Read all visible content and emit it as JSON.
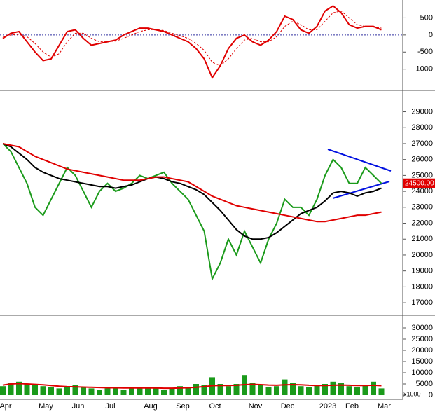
{
  "chart_data": [
    {
      "type": "line",
      "ylim": [
        -1580,
        980
      ],
      "yticks": [
        -1000,
        -500,
        0,
        500
      ],
      "series": [
        {
          "color": "#e00000",
          "style": "solid",
          "values": [
            -100,
            50,
            100,
            -200,
            -500,
            -750,
            -700,
            -300,
            100,
            150,
            -100,
            -300,
            -250,
            -200,
            -150,
            0,
            100,
            200,
            200,
            150,
            100,
            0,
            -100,
            -200,
            -400,
            -700,
            -1250,
            -900,
            -400,
            -100,
            0,
            -200,
            -300,
            -150,
            100,
            550,
            450,
            150,
            50,
            250,
            700,
            850,
            650,
            300,
            200,
            250,
            250,
            150
          ]
        },
        {
          "color": "#e00000",
          "style": "dashed",
          "values": [
            -50,
            0,
            20,
            -50,
            -250,
            -500,
            -650,
            -550,
            -200,
            50,
            50,
            -100,
            -200,
            -200,
            -180,
            -100,
            0,
            100,
            150,
            160,
            130,
            50,
            -20,
            -100,
            -250,
            -450,
            -800,
            -900,
            -700,
            -400,
            -150,
            -100,
            -200,
            -200,
            -50,
            250,
            400,
            300,
            150,
            150,
            400,
            650,
            700,
            500,
            300,
            250,
            230,
            200
          ]
        }
      ]
    },
    {
      "type": "line",
      "ylim": [
        16300,
        30300
      ],
      "yticks": [
        17000,
        18000,
        19000,
        20000,
        21000,
        22000,
        23000,
        24000,
        25000,
        26000,
        27000,
        28000,
        29000
      ],
      "last_price_label": "24500.00",
      "series": [
        {
          "color": "#1a9a1a",
          "style": "solid",
          "values": [
            27000,
            26500,
            25500,
            24500,
            23000,
            22500,
            23500,
            24500,
            25500,
            25000,
            24000,
            23000,
            24000,
            24500,
            24000,
            24200,
            24500,
            25000,
            24800,
            25000,
            25200,
            24500,
            24000,
            23500,
            22500,
            21500,
            18500,
            19500,
            21000,
            20000,
            21500,
            20500,
            19500,
            21000,
            22000,
            23500,
            23000,
            23000,
            22500,
            23500,
            25000,
            26000,
            25500,
            24500,
            24500,
            25500,
            25000,
            24500
          ]
        },
        {
          "color": "#000000",
          "style": "solid",
          "values": [
            27000,
            26800,
            26400,
            26000,
            25500,
            25200,
            25000,
            24800,
            24700,
            24600,
            24500,
            24400,
            24300,
            24300,
            24200,
            24300,
            24400,
            24600,
            24800,
            24900,
            24800,
            24600,
            24500,
            24300,
            24100,
            23800,
            23300,
            22800,
            22200,
            21600,
            21200,
            21000,
            21000,
            21100,
            21400,
            21800,
            22200,
            22600,
            22800,
            23000,
            23400,
            23900,
            24000,
            23900,
            23700,
            23900,
            24000,
            24200
          ]
        },
        {
          "color": "#e00000",
          "style": "solid",
          "values": [
            27000,
            26900,
            26800,
            26500,
            26200,
            26000,
            25800,
            25600,
            25400,
            25300,
            25200,
            25100,
            25000,
            24900,
            24800,
            24700,
            24700,
            24700,
            24800,
            24900,
            24900,
            24800,
            24700,
            24600,
            24300,
            24000,
            23700,
            23500,
            23300,
            23100,
            23000,
            22900,
            22800,
            22700,
            22600,
            22500,
            22400,
            22300,
            22200,
            22100,
            22100,
            22200,
            22300,
            22400,
            22500,
            22500,
            22600,
            22700
          ]
        }
      ]
    },
    {
      "type": "bar",
      "ylim": [
        -1875,
        35000
      ],
      "yticks": [
        0,
        5000,
        10000,
        15000,
        20000,
        25000,
        30000
      ],
      "unit_label": "x1000",
      "categories": [
        "Apr",
        null,
        null,
        null,
        null,
        "May",
        null,
        null,
        null,
        "Jun",
        null,
        null,
        null,
        "Jul",
        null,
        null,
        null,
        null,
        "Aug",
        null,
        null,
        null,
        "Sep",
        null,
        null,
        null,
        "Oct",
        null,
        null,
        null,
        null,
        "Nov",
        null,
        null,
        null,
        "Dec",
        null,
        null,
        null,
        null,
        "2023",
        null,
        null,
        "Feb",
        null,
        null,
        null,
        "Mar"
      ],
      "series": [
        {
          "type": "bar",
          "color": "#1a9a1a",
          "values": [
            4000,
            5500,
            6000,
            5000,
            4500,
            4000,
            3500,
            3000,
            4000,
            4500,
            3500,
            3000,
            2500,
            3000,
            3500,
            2500,
            3000,
            3500,
            3000,
            3500,
            2500,
            3000,
            4000,
            3500,
            5000,
            4500,
            8000,
            5000,
            4000,
            5000,
            9000,
            5500,
            4500,
            3500,
            4000,
            7000,
            5500,
            4000,
            3500,
            4500,
            5000,
            6000,
            5500,
            4000,
            3500,
            4500,
            6000,
            3000
          ]
        },
        {
          "type": "line",
          "color": "#e00000",
          "values": [
            4500,
            5000,
            5200,
            5000,
            4800,
            4600,
            4300,
            4000,
            3800,
            3700,
            3600,
            3500,
            3400,
            3300,
            3300,
            3200,
            3200,
            3200,
            3200,
            3200,
            3100,
            3100,
            3200,
            3300,
            3500,
            3800,
            4200,
            4300,
            4300,
            4400,
            4700,
            4800,
            4700,
            4500,
            4400,
            4600,
            4700,
            4600,
            4400,
            4300,
            4300,
            4400,
            4500,
            4400,
            4300,
            4300,
            4400,
            4200
          ]
        }
      ]
    }
  ]
}
